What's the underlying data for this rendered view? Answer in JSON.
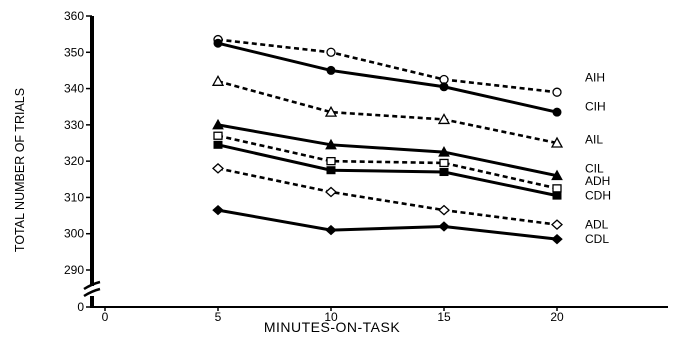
{
  "chart_data": {
    "type": "line",
    "title": "",
    "xlabel": "MINUTES-ON-TASK",
    "ylabel": "TOTAL NUMBER OF TRIALS",
    "x": [
      5,
      10,
      15,
      20
    ],
    "x_ticks": [
      "0",
      "5",
      "10",
      "15",
      "20"
    ],
    "y_ticks": [
      "0",
      "290",
      "300",
      "310",
      "320",
      "330",
      "340",
      "350",
      "360"
    ],
    "ylim": [
      290,
      360
    ],
    "y_axis_break": true,
    "grid": false,
    "legend": "labels at right end of each series",
    "series": [
      {
        "name": "AIH",
        "values": [
          353.5,
          350,
          342.5,
          339
        ],
        "line": "dashed",
        "marker": "open-circle"
      },
      {
        "name": "CIH",
        "values": [
          352.5,
          345,
          340.5,
          333.5
        ],
        "line": "solid",
        "marker": "filled-circle"
      },
      {
        "name": "AIL",
        "values": [
          342,
          333.5,
          331.5,
          325
        ],
        "line": "dashed",
        "marker": "open-triangle"
      },
      {
        "name": "CIL",
        "values": [
          330,
          324.5,
          322.5,
          316
        ],
        "line": "solid",
        "marker": "filled-triangle"
      },
      {
        "name": "ADH",
        "values": [
          327,
          320,
          319.5,
          312.5
        ],
        "line": "dashed",
        "marker": "open-square"
      },
      {
        "name": "CDH",
        "values": [
          324.5,
          317.5,
          317,
          310.5
        ],
        "line": "solid",
        "marker": "filled-square"
      },
      {
        "name": "ADL",
        "values": [
          318,
          311.5,
          306.5,
          302.5
        ],
        "line": "dashed",
        "marker": "open-diamond"
      },
      {
        "name": "CDL",
        "values": [
          306.5,
          301,
          302,
          298.5
        ],
        "line": "solid",
        "marker": "filled-diamond"
      }
    ]
  }
}
